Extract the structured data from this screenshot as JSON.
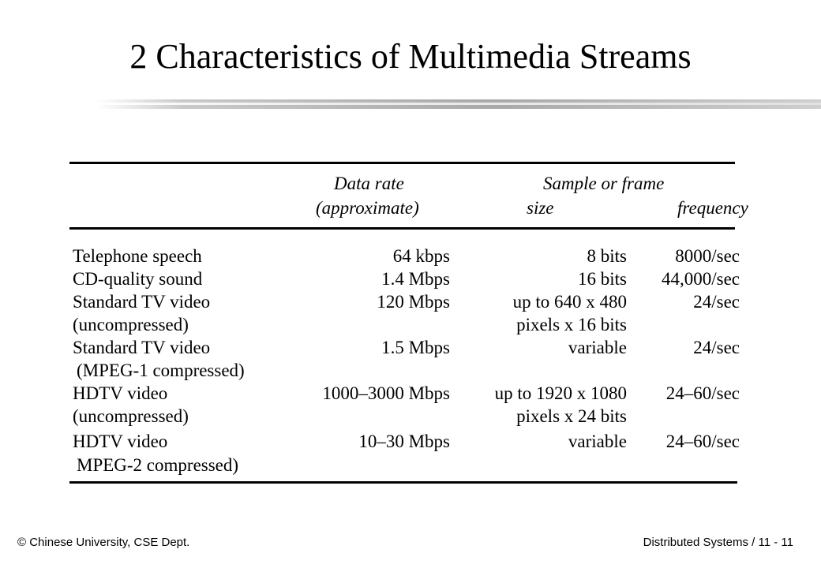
{
  "title": "2 Characteristics of Multimedia Streams",
  "table": {
    "headers": {
      "data_rate_line1": "Data rate",
      "data_rate_line2": "(approximate)",
      "sample_line1": "Sample or frame",
      "size": "size",
      "frequency": "frequency"
    },
    "rows": [
      {
        "medium": "Telephone speech",
        "rate": "64  kbps",
        "size": "8 bits",
        "frequency": "8000/sec"
      },
      {
        "medium": "CD-quality sound",
        "rate": "1.4 Mbps",
        "size": "16 bits",
        "frequency": "44,000/sec"
      },
      {
        "medium": "Standard TV video",
        "rate": "120 Mbps",
        "size": "up to 640 x 480",
        "frequency": "24/sec"
      },
      {
        "medium": "(uncompressed)",
        "rate": "",
        "size": "pixels x 16 bits",
        "frequency": ""
      },
      {
        "medium": "Standard TV video",
        "rate": "1.5 Mbps",
        "size": "variable",
        "frequency": "24/sec"
      },
      {
        "medium": "(MPEG-1 compressed)",
        "rate": "",
        "size": "",
        "frequency": ""
      },
      {
        "medium": "HDTV video",
        "rate": "1000–3000 Mbps",
        "size": "up to 1920 x 1080",
        "frequency": "24–60/sec"
      },
      {
        "medium": "(uncompressed)",
        "rate": "",
        "size": "pixels x 24 bits",
        "frequency": ""
      },
      {
        "medium": "HDTV video",
        "rate": "10–30 Mbps",
        "size": "variable",
        "frequency": "24–60/sec"
      },
      {
        "medium": "MPEG-2 compressed)",
        "rate": "",
        "size": "",
        "frequency": ""
      }
    ]
  },
  "footer": {
    "left": "© Chinese University, CSE Dept.",
    "right": "Distributed Systems / 11 - 11"
  }
}
